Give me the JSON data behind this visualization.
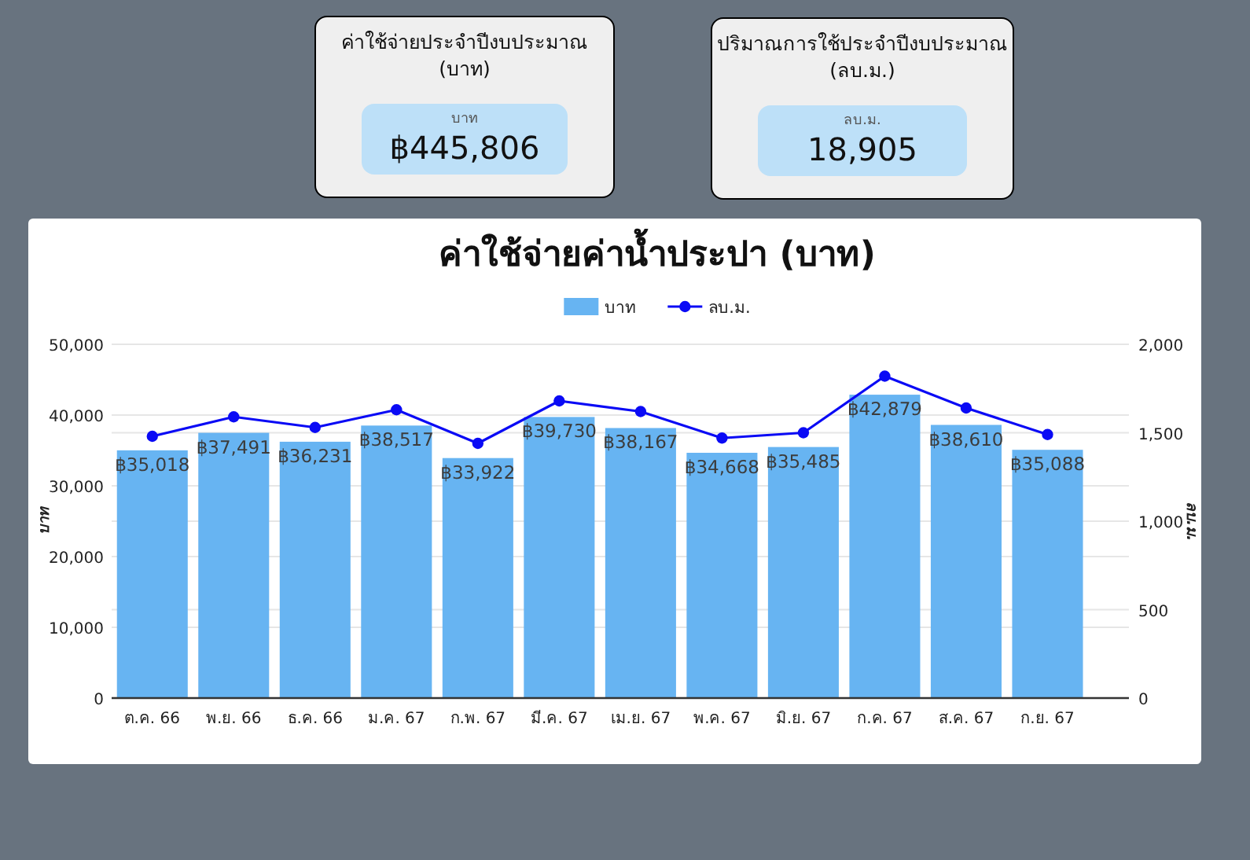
{
  "chart_data": [
    {
      "type": "other",
      "title": "ค่าใช้จ่ายประจำปีงบประมาณ (บาท)",
      "annotations": [
        "บาท",
        "฿445,806"
      ]
    },
    {
      "type": "other",
      "title": "ปริมาณการใช้ประจำปีงบประมาณ (ลบ.ม.)",
      "annotations": [
        "ลบ.ม.",
        "18,905"
      ]
    },
    {
      "type": "bar",
      "title": "ค่าใช้จ่ายค่าน้ำประปา (บาท)",
      "categories": [
        "ต.ค. 66",
        "พ.ย. 66",
        "ธ.ค. 66",
        "ม.ค. 67",
        "ก.พ. 67",
        "มี.ค. 67",
        "เม.ย. 67",
        "พ.ค. 67",
        "มิ.ย. 67",
        "ก.ค. 67",
        "ส.ค. 67",
        "ก.ย. 67"
      ],
      "series": [
        {
          "name": "บาท",
          "color": "#67b4f2",
          "values": [
            35018,
            37491,
            36231,
            38517,
            33922,
            39730,
            38167,
            34668,
            35485,
            42879,
            38610,
            35088
          ],
          "value_labels": [
            "฿35,018",
            "฿37,491",
            "฿36,231",
            "฿38,517",
            "฿33,922",
            "฿39,730",
            "฿38,167",
            "฿34,668",
            "฿35,485",
            "฿42,879",
            "฿38,610",
            "฿35,088"
          ]
        },
        {
          "name": "ลบ.ม.",
          "type": "line",
          "axis": "y2",
          "color": "#0a0af5",
          "marker": "circle",
          "values": [
            1480,
            1590,
            1530,
            1630,
            1440,
            1680,
            1620,
            1470,
            1500,
            1820,
            1640,
            1490
          ]
        }
      ],
      "ylabel": "บาท",
      "y2label": "ลบ.ม.",
      "ylim": [
        0,
        50000
      ],
      "yticks": [
        0,
        {
          "value": 10000,
          "label": "10,000"
        },
        {
          "value": 20000,
          "label": "20,000"
        },
        {
          "value": 30000,
          "label": "30,000"
        },
        {
          "value": 40000,
          "label": "40,000"
        },
        {
          "value": 50000,
          "label": "50,000"
        }
      ],
      "y2lim": [
        0,
        2000
      ],
      "y2ticks": [
        0,
        500,
        {
          "value": 1000,
          "label": "1,000"
        },
        {
          "value": 1500,
          "label": "1,500"
        },
        {
          "value": 2000,
          "label": "2,000"
        }
      ],
      "grid": "y",
      "legend": "top"
    }
  ]
}
